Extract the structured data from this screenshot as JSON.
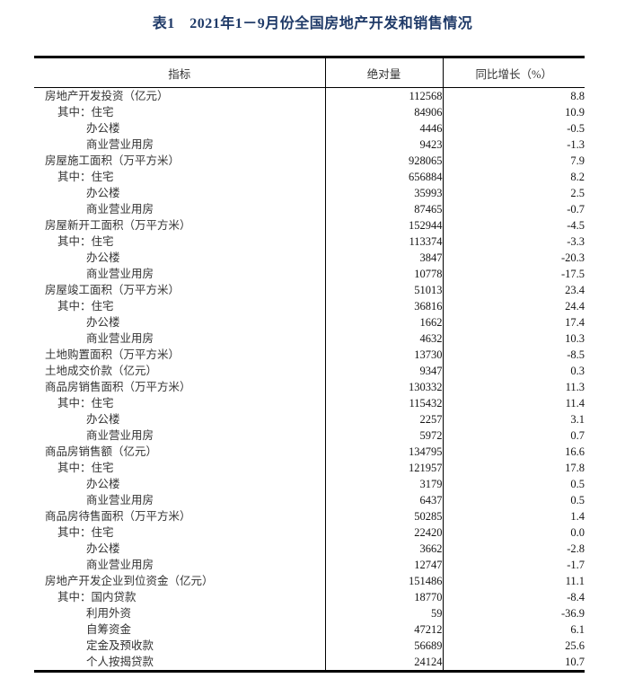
{
  "page": {
    "title": "表1　2021年1－9月份全国房地产开发和销售情况"
  },
  "colors": {
    "title_text": "#1f3a68",
    "body_text": "#333333",
    "number_text": "#141414",
    "border": "#000000",
    "background": "#ffffff"
  },
  "table": {
    "columns": [
      "指标",
      "绝对量",
      "同比增长（%）"
    ],
    "rows": [
      {
        "indicator": "房地产开发投资（亿元）",
        "value": "112568",
        "growth": "8.8",
        "level": 0
      },
      {
        "indicator": "其中：住宅",
        "value": "84906",
        "growth": "10.9",
        "level": 1
      },
      {
        "indicator": "办公楼",
        "value": "4446",
        "growth": "-0.5",
        "level": 2
      },
      {
        "indicator": "商业营业用房",
        "value": "9423",
        "growth": "-1.3",
        "level": 2
      },
      {
        "indicator": "房屋施工面积（万平方米）",
        "value": "928065",
        "growth": "7.9",
        "level": 0
      },
      {
        "indicator": "其中：住宅",
        "value": "656884",
        "growth": "8.2",
        "level": 1
      },
      {
        "indicator": "办公楼",
        "value": "35993",
        "growth": "2.5",
        "level": 2
      },
      {
        "indicator": "商业营业用房",
        "value": "87465",
        "growth": "-0.7",
        "level": 2
      },
      {
        "indicator": "房屋新开工面积（万平方米）",
        "value": "152944",
        "growth": "-4.5",
        "level": 0
      },
      {
        "indicator": "其中：住宅",
        "value": "113374",
        "growth": "-3.3",
        "level": 1
      },
      {
        "indicator": "办公楼",
        "value": "3847",
        "growth": "-20.3",
        "level": 2
      },
      {
        "indicator": "商业营业用房",
        "value": "10778",
        "growth": "-17.5",
        "level": 2
      },
      {
        "indicator": "房屋竣工面积（万平方米）",
        "value": "51013",
        "growth": "23.4",
        "level": 0
      },
      {
        "indicator": "其中：住宅",
        "value": "36816",
        "growth": "24.4",
        "level": 1
      },
      {
        "indicator": "办公楼",
        "value": "1662",
        "growth": "17.4",
        "level": 2
      },
      {
        "indicator": "商业营业用房",
        "value": "4632",
        "growth": "10.3",
        "level": 2
      },
      {
        "indicator": "土地购置面积（万平方米）",
        "value": "13730",
        "growth": "-8.5",
        "level": 0
      },
      {
        "indicator": "土地成交价款（亿元）",
        "value": "9347",
        "growth": "0.3",
        "level": 0
      },
      {
        "indicator": "商品房销售面积（万平方米）",
        "value": "130332",
        "growth": "11.3",
        "level": 0
      },
      {
        "indicator": "其中：住宅",
        "value": "115432",
        "growth": "11.4",
        "level": 1
      },
      {
        "indicator": "办公楼",
        "value": "2257",
        "growth": "3.1",
        "level": 2
      },
      {
        "indicator": "商业营业用房",
        "value": "5972",
        "growth": "0.7",
        "level": 2
      },
      {
        "indicator": "商品房销售额（亿元）",
        "value": "134795",
        "growth": "16.6",
        "level": 0
      },
      {
        "indicator": "其中：住宅",
        "value": "121957",
        "growth": "17.8",
        "level": 1
      },
      {
        "indicator": "办公楼",
        "value": "3179",
        "growth": "0.5",
        "level": 2
      },
      {
        "indicator": "商业营业用房",
        "value": "6437",
        "growth": "0.5",
        "level": 2
      },
      {
        "indicator": "商品房待售面积（万平方米）",
        "value": "50285",
        "growth": "1.4",
        "level": 0
      },
      {
        "indicator": "其中：住宅",
        "value": "22420",
        "growth": "0.0",
        "level": 1
      },
      {
        "indicator": "办公楼",
        "value": "3662",
        "growth": "-2.8",
        "level": 2
      },
      {
        "indicator": "商业营业用房",
        "value": "12747",
        "growth": "-1.7",
        "level": 2
      },
      {
        "indicator": "房地产开发企业到位资金（亿元）",
        "value": "151486",
        "growth": "11.1",
        "level": 0
      },
      {
        "indicator": "其中：国内贷款",
        "value": "18770",
        "growth": "-8.4",
        "level": 1
      },
      {
        "indicator": "利用外资",
        "value": "59",
        "growth": "-36.9",
        "level": 2
      },
      {
        "indicator": "自筹资金",
        "value": "47212",
        "growth": "6.1",
        "level": 2
      },
      {
        "indicator": "定金及预收款",
        "value": "56689",
        "growth": "25.6",
        "level": 2
      },
      {
        "indicator": "个人按揭贷款",
        "value": "24124",
        "growth": "10.7",
        "level": 2
      }
    ]
  }
}
